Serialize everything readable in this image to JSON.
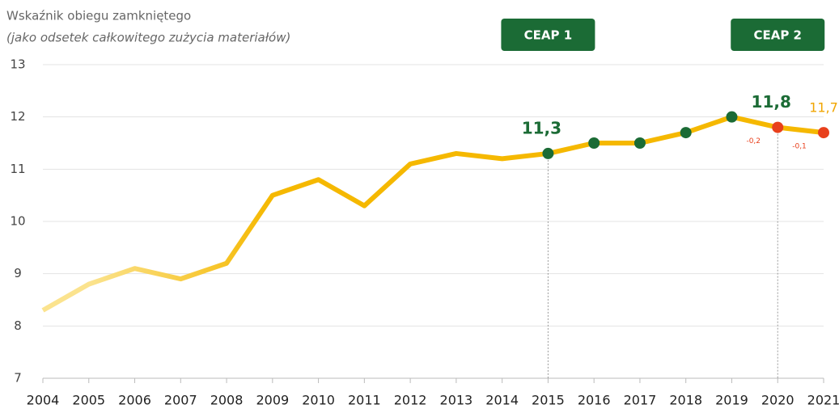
{
  "chart_data": {
    "type": "line",
    "title": "Wskaźnik obiegu zamkniętego",
    "subtitle": "(jako odsetek całkowitego zużycia materiałów)",
    "categories": [
      "2004",
      "2005",
      "2006",
      "2007",
      "2008",
      "2009",
      "2010",
      "2011",
      "2012",
      "2013",
      "2014",
      "2015",
      "2016",
      "2017",
      "2018",
      "2019",
      "2020",
      "2021"
    ],
    "values": [
      8.3,
      8.8,
      9.1,
      8.9,
      9.2,
      10.5,
      10.8,
      10.3,
      11.1,
      11.3,
      11.2,
      11.3,
      11.5,
      11.5,
      11.7,
      12.0,
      11.8,
      11.7
    ],
    "value_labels": [
      null,
      null,
      null,
      null,
      null,
      null,
      null,
      null,
      null,
      null,
      null,
      "11,3",
      null,
      null,
      null,
      null,
      "11,8",
      "11,7"
    ],
    "value_label_colors": [
      null,
      null,
      null,
      null,
      null,
      null,
      null,
      null,
      null,
      null,
      null,
      "#1b6b35",
      null,
      null,
      null,
      null,
      "#1b6b35",
      "#f0a500"
    ],
    "color": "#f5b800",
    "faded_color": "#fbe38e",
    "marker_colors": [
      null,
      null,
      null,
      null,
      null,
      null,
      null,
      null,
      null,
      null,
      null,
      "#1b6b35",
      "#1b6b35",
      "#1b6b35",
      "#1b6b35",
      "#1b6b35",
      "#e8401c",
      "#e8401c"
    ],
    "change_labels": [
      {
        "text": "-0,2",
        "category": "2020"
      },
      {
        "text": "-0,1",
        "category": "2021"
      }
    ],
    "change_color": "#e8401c",
    "milestones": [
      {
        "text": "CEAP 1",
        "category": "2015"
      },
      {
        "text": "CEAP 2",
        "category": "2020"
      }
    ],
    "milestone_color": "#1b6b35",
    "ylim": [
      7,
      13
    ],
    "yticks": [
      7,
      8,
      9,
      10,
      11,
      12,
      13
    ],
    "grid": true
  }
}
